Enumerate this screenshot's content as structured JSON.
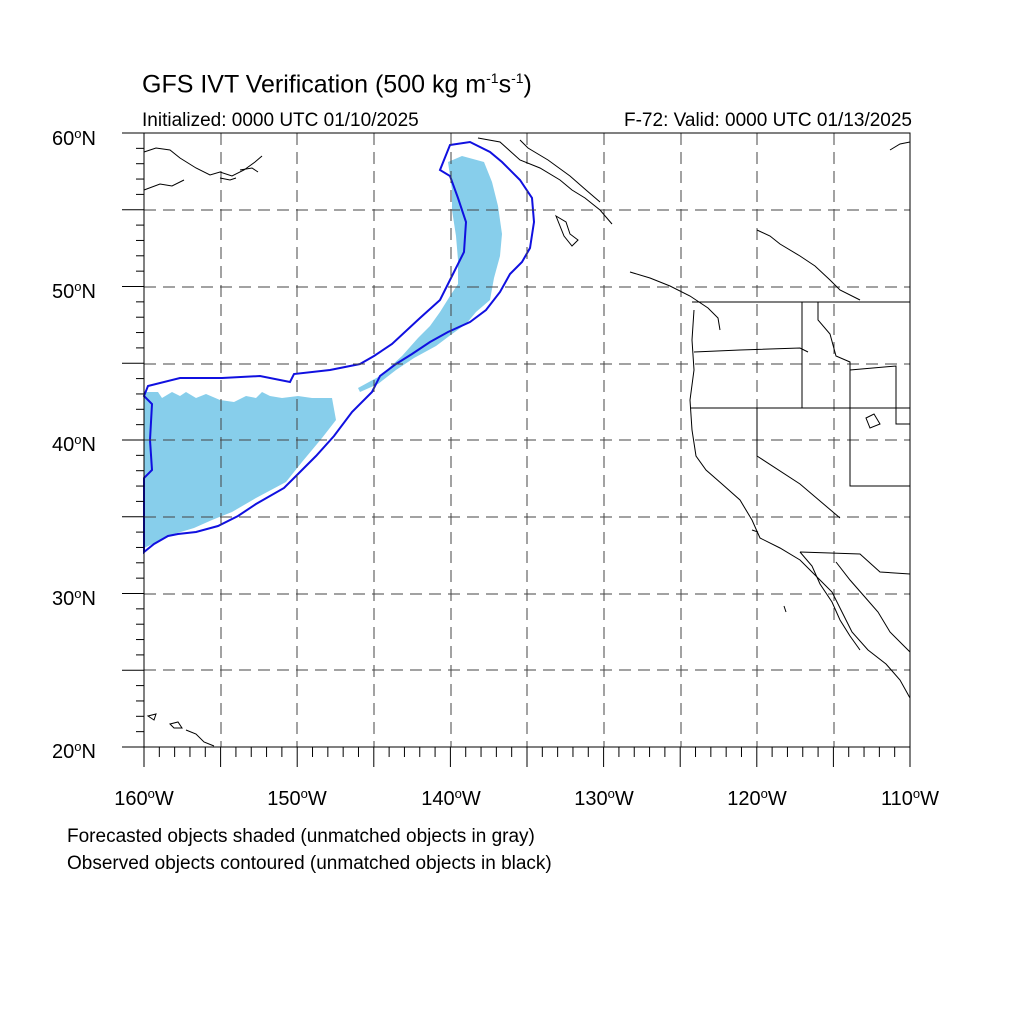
{
  "title": {
    "prefix": "GFS IVT Verification (500 kg m",
    "exp1": "-1",
    "mid": "s",
    "exp2": "-1",
    "suffix": ")"
  },
  "subtitle_left": "Initialized: 0000 UTC 01/10/2025",
  "subtitle_right": "F-72: Valid: 0000 UTC 01/13/2025",
  "map": {
    "lon_range": [
      -160,
      -110
    ],
    "lat_range": [
      20,
      60
    ],
    "lat_labels": [
      {
        "deg": "60",
        "hemi": "N"
      },
      {
        "deg": "50",
        "hemi": "N"
      },
      {
        "deg": "40",
        "hemi": "N"
      },
      {
        "deg": "30",
        "hemi": "N"
      },
      {
        "deg": "20",
        "hemi": "N"
      }
    ],
    "lon_labels": [
      {
        "deg": "160",
        "hemi": "W"
      },
      {
        "deg": "150",
        "hemi": "W"
      },
      {
        "deg": "140",
        "hemi": "W"
      },
      {
        "deg": "130",
        "hemi": "W"
      },
      {
        "deg": "120",
        "hemi": "W"
      },
      {
        "deg": "110",
        "hemi": "W"
      }
    ],
    "forecast_fill_color": "#87ceeb",
    "observed_contour_color": "#1010e0",
    "grid": "dashed"
  },
  "footnote_1": "Forecasted objects shaded (unmatched objects in gray)",
  "footnote_2": "Observed objects contoured (unmatched objects in black)"
}
